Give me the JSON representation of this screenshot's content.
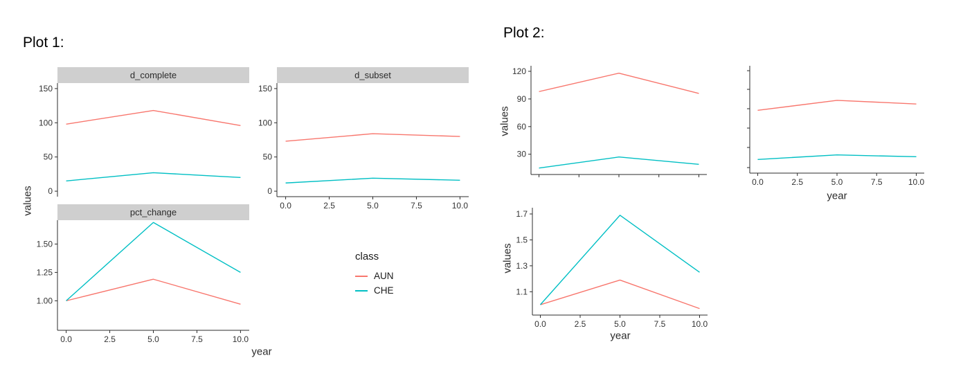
{
  "plot1": {
    "title": "Plot 1:",
    "xlabel": "year",
    "ylabel": "values"
  },
  "plot2": {
    "title": "Plot 2:",
    "xlabel": "year",
    "ylabel": "values"
  },
  "colors": {
    "AUN": "#F8766D",
    "CHE": "#00BFC4",
    "strip_bg": "#cfcfcf",
    "axis": "#2b2b2b",
    "tick_text": "#333333"
  },
  "legend": {
    "title": "class",
    "items": [
      {
        "label": "AUN",
        "color": "#F8766D"
      },
      {
        "label": "CHE",
        "color": "#00BFC4"
      }
    ]
  },
  "chart_data": [
    {
      "type": "line",
      "plot": "Plot 1",
      "facet": "d_complete",
      "xlabel": "year",
      "ylabel": "values",
      "x": [
        0,
        5,
        10
      ],
      "series": [
        {
          "name": "AUN",
          "values": [
            98,
            118,
            96
          ]
        },
        {
          "name": "CHE",
          "values": [
            15,
            27,
            20
          ]
        }
      ],
      "xlim": [
        -0.5,
        10.5
      ],
      "ylim": [
        -8,
        158
      ],
      "grid": false,
      "xaxis": false,
      "yticks": [
        {
          "v": 0,
          "t": "0"
        },
        {
          "v": 50,
          "t": "50"
        },
        {
          "v": 100,
          "t": "100"
        },
        {
          "v": 150,
          "t": "150"
        }
      ],
      "xticks": []
    },
    {
      "type": "line",
      "plot": "Plot 1",
      "facet": "d_subset",
      "xlabel": "year",
      "ylabel": "values",
      "x": [
        0,
        5,
        10
      ],
      "series": [
        {
          "name": "AUN",
          "values": [
            73,
            84,
            80
          ]
        },
        {
          "name": "CHE",
          "values": [
            12,
            19,
            16
          ]
        }
      ],
      "xlim": [
        -0.5,
        10.5
      ],
      "ylim": [
        -8,
        158
      ],
      "grid": false,
      "xaxis": true,
      "yticks": [
        {
          "v": 0,
          "t": "0"
        },
        {
          "v": 50,
          "t": "50"
        },
        {
          "v": 100,
          "t": "100"
        },
        {
          "v": 150,
          "t": "150"
        }
      ],
      "xticks": [
        {
          "v": 0,
          "t": "0.0"
        },
        {
          "v": 2.5,
          "t": "2.5"
        },
        {
          "v": 5,
          "t": "5.0"
        },
        {
          "v": 7.5,
          "t": "7.5"
        },
        {
          "v": 10,
          "t": "10.0"
        }
      ]
    },
    {
      "type": "line",
      "plot": "Plot 1",
      "facet": "pct_change",
      "xlabel": "year",
      "ylabel": "values",
      "x": [
        0,
        5,
        10
      ],
      "series": [
        {
          "name": "AUN",
          "values": [
            1.0,
            1.19,
            0.97
          ]
        },
        {
          "name": "CHE",
          "values": [
            1.0,
            1.69,
            1.25
          ]
        }
      ],
      "xlim": [
        -0.5,
        10.5
      ],
      "ylim": [
        0.74,
        1.71
      ],
      "grid": false,
      "xaxis": true,
      "yticks": [
        {
          "v": 1.0,
          "t": "1.00"
        },
        {
          "v": 1.25,
          "t": "1.25"
        },
        {
          "v": 1.5,
          "t": "1.50"
        }
      ],
      "xticks": [
        {
          "v": 0,
          "t": "0.0"
        },
        {
          "v": 2.5,
          "t": "2.5"
        },
        {
          "v": 5,
          "t": "5.0"
        },
        {
          "v": 7.5,
          "t": "7.5"
        },
        {
          "v": 10,
          "t": "10.0"
        }
      ]
    },
    {
      "type": "line",
      "plot": "Plot 2",
      "facet": "",
      "xlabel": "",
      "ylabel": "values",
      "x": [
        0,
        5,
        10
      ],
      "series": [
        {
          "name": "AUN",
          "values": [
            98,
            118,
            96
          ]
        },
        {
          "name": "CHE",
          "values": [
            15,
            27,
            19
          ]
        }
      ],
      "xlim": [
        -0.5,
        10.5
      ],
      "ylim": [
        8,
        126
      ],
      "grid": false,
      "xaxis": true,
      "yticks": [
        {
          "v": 30,
          "t": "30"
        },
        {
          "v": 60,
          "t": "60"
        },
        {
          "v": 90,
          "t": "90"
        },
        {
          "v": 120,
          "t": "120"
        }
      ],
      "xticks": [
        {
          "v": 0,
          "t": ""
        },
        {
          "v": 2.5,
          "t": ""
        },
        {
          "v": 5,
          "t": ""
        },
        {
          "v": 7.5,
          "t": ""
        },
        {
          "v": 10,
          "t": ""
        }
      ]
    },
    {
      "type": "line",
      "plot": "Plot 2",
      "facet": "",
      "xlabel": "year",
      "ylabel": "",
      "x": [
        0,
        5,
        10
      ],
      "series": [
        {
          "name": "AUN",
          "values": [
            77,
            88,
            84
          ]
        },
        {
          "name": "CHE",
          "values": [
            23,
            28,
            26
          ]
        }
      ],
      "xlim": [
        -0.5,
        10.5
      ],
      "ylim": [
        8,
        126
      ],
      "grid": false,
      "xaxis": true,
      "yticks": [
        {
          "v": 14.1,
          "t": ""
        },
        {
          "v": 36.2,
          "t": ""
        },
        {
          "v": 57.5,
          "t": ""
        },
        {
          "v": 78.8,
          "t": ""
        },
        {
          "v": 100.1,
          "t": ""
        },
        {
          "v": 120.6,
          "t": ""
        }
      ],
      "xticks": [
        {
          "v": 0,
          "t": "0.0"
        },
        {
          "v": 2.5,
          "t": "2.5"
        },
        {
          "v": 5,
          "t": "5.0"
        },
        {
          "v": 7.5,
          "t": "7.5"
        },
        {
          "v": 10,
          "t": "10.0"
        }
      ]
    },
    {
      "type": "line",
      "plot": "Plot 2",
      "facet": "",
      "xlabel": "year",
      "ylabel": "values",
      "x": [
        0,
        5,
        10
      ],
      "series": [
        {
          "name": "AUN",
          "values": [
            1.0,
            1.19,
            0.97
          ]
        },
        {
          "name": "CHE",
          "values": [
            1.0,
            1.69,
            1.25
          ]
        }
      ],
      "xlim": [
        -0.5,
        10.5
      ],
      "ylim": [
        0.92,
        1.748
      ],
      "grid": false,
      "xaxis": true,
      "yticks": [
        {
          "v": 1.1,
          "t": "1.1"
        },
        {
          "v": 1.3,
          "t": "1.3"
        },
        {
          "v": 1.5,
          "t": "1.5"
        },
        {
          "v": 1.7,
          "t": "1.7"
        }
      ],
      "xticks": [
        {
          "v": 0,
          "t": "0.0"
        },
        {
          "v": 2.5,
          "t": "2.5"
        },
        {
          "v": 5,
          "t": "5.0"
        },
        {
          "v": 7.5,
          "t": "7.5"
        },
        {
          "v": 10,
          "t": "10.0"
        }
      ]
    }
  ]
}
